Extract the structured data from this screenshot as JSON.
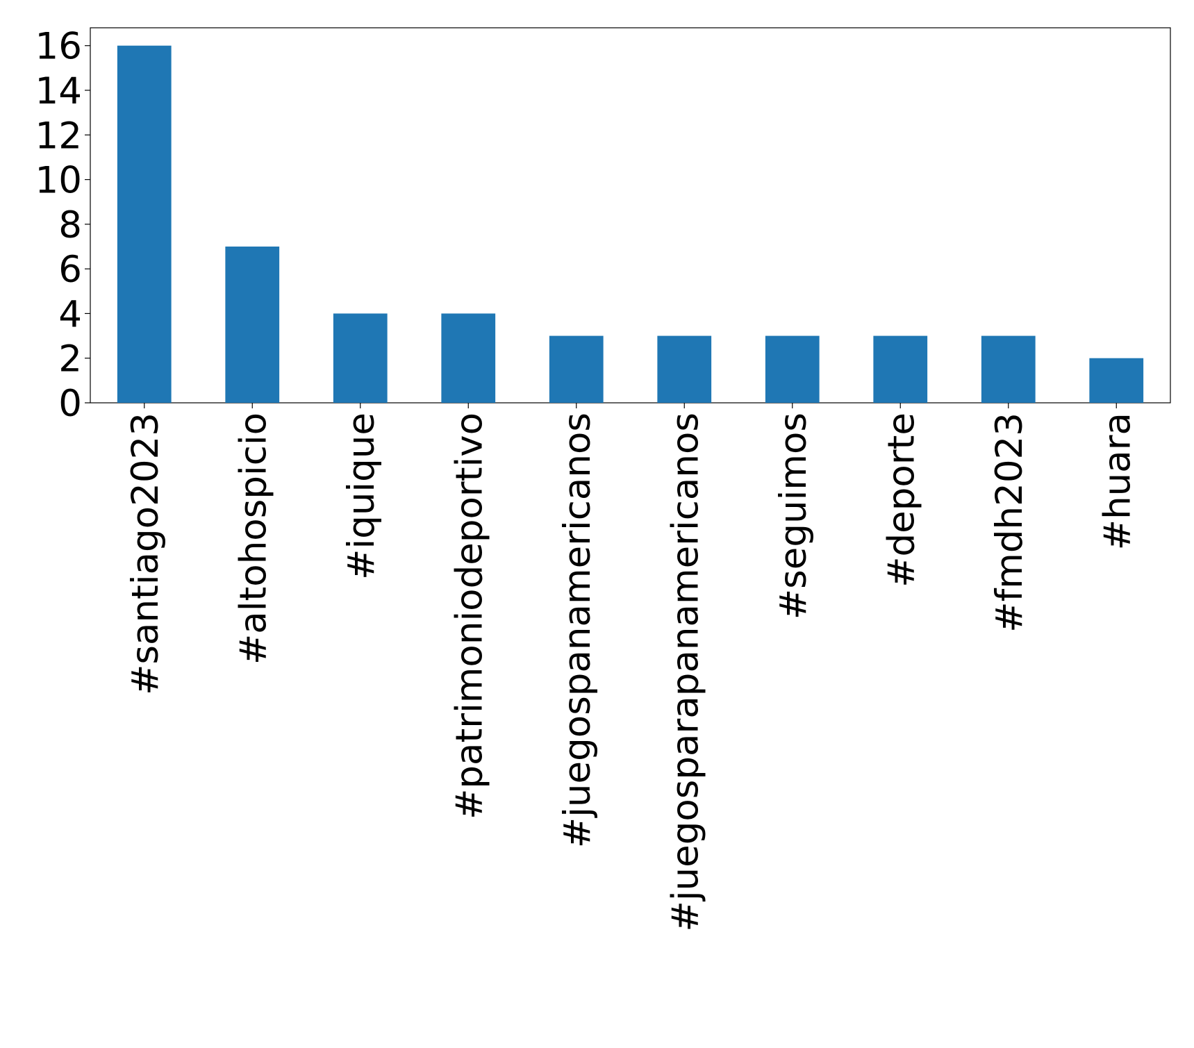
{
  "chart_data": {
    "type": "bar",
    "categories": [
      "#santiago2023",
      "#altohospicio",
      "#iquique",
      "#patrimoniodeportivo",
      "#juegospanamericanos",
      "#juegosparapanamericanos",
      "#seguimos",
      "#deporte",
      "#fmdh2023",
      "#huara"
    ],
    "values": [
      16,
      7,
      4,
      4,
      3,
      3,
      3,
      3,
      3,
      2
    ],
    "color": "#1f77b4",
    "ylim": [
      0,
      16.8
    ],
    "yticks": [
      0,
      2,
      4,
      6,
      8,
      10,
      12,
      14,
      16
    ],
    "grid": false
  }
}
